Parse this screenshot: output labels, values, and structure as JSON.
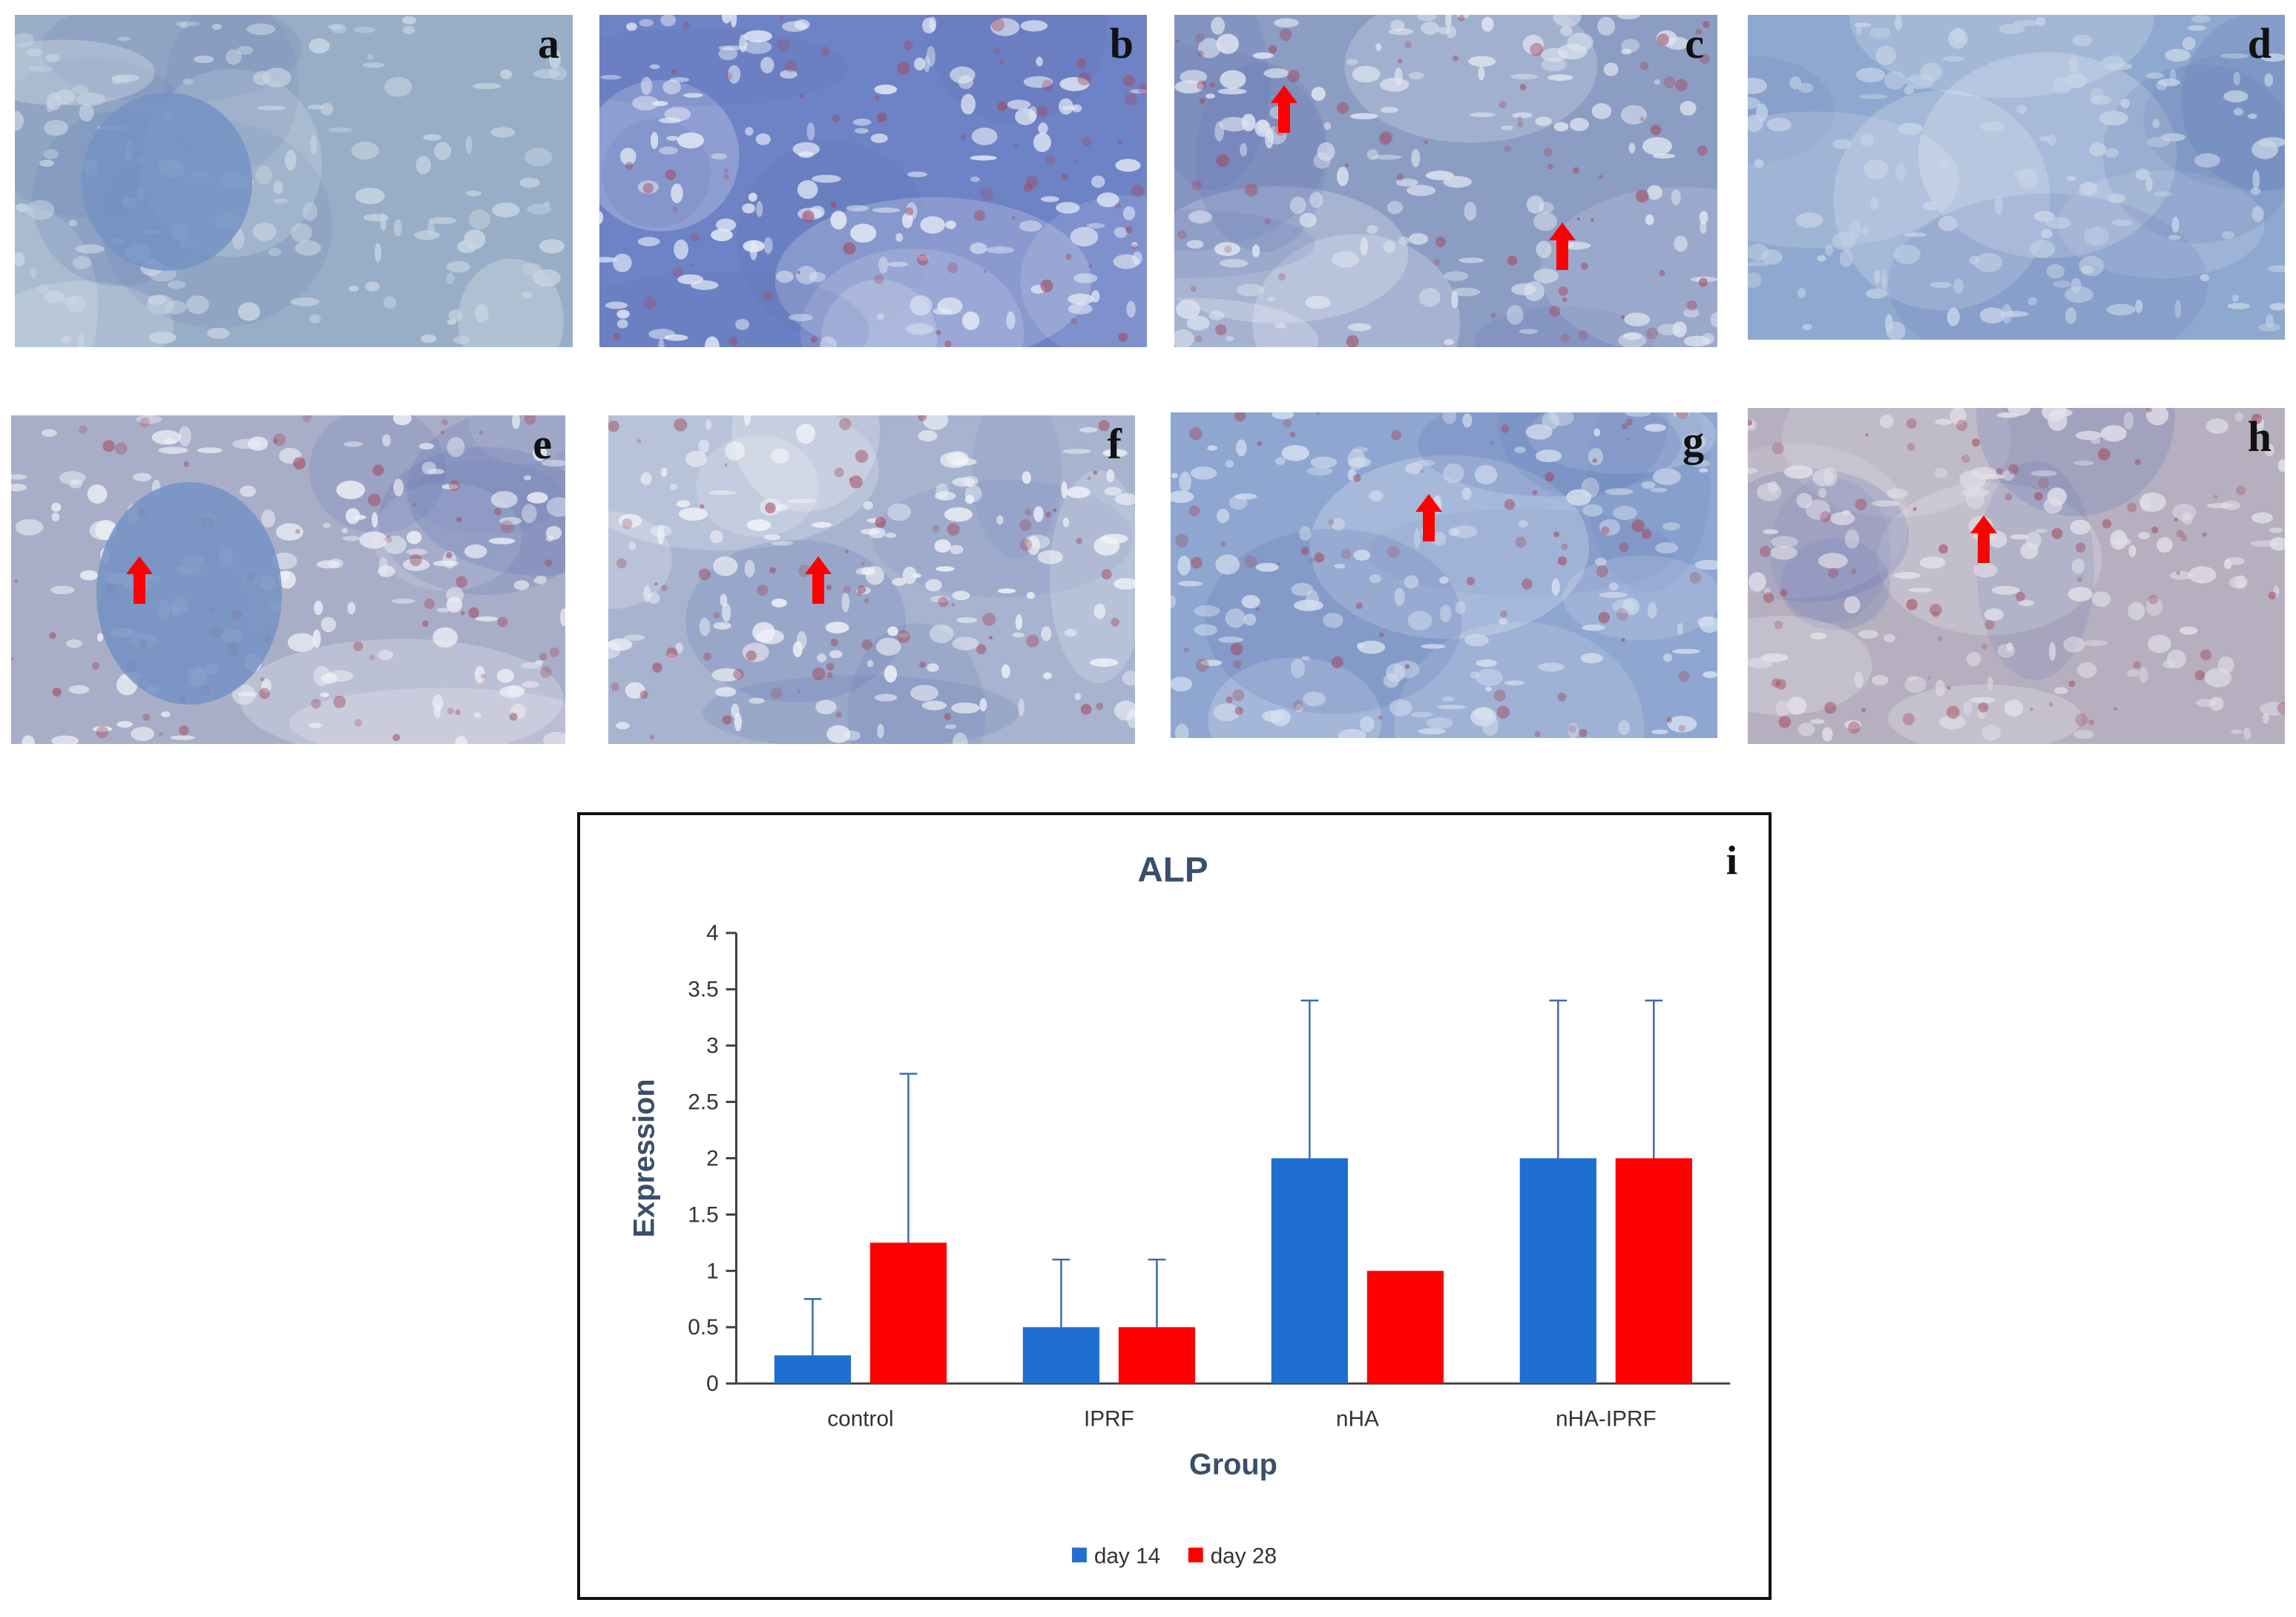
{
  "panels": [
    {
      "label": "a",
      "tint": "#98aec6",
      "dots": "#c9d6e3",
      "stain": false,
      "arrows": 0
    },
    {
      "label": "b",
      "tint": "#6e82c6",
      "dots": "#e6ecf6",
      "stain": true,
      "arrows": 0
    },
    {
      "label": "c",
      "tint": "#8c9dc4",
      "dots": "#dfe6f0",
      "stain": true,
      "arrows": 2
    },
    {
      "label": "d",
      "tint": "#8fa8cf",
      "dots": "#c7d4e6",
      "stain": false,
      "arrows": 0
    },
    {
      "label": "e",
      "tint": "#a9aec8",
      "dots": "#eef0f6",
      "stain": true,
      "arrows": 1
    },
    {
      "label": "f",
      "tint": "#a7b3cf",
      "dots": "#f2f4f8",
      "stain": true,
      "arrows": 1
    },
    {
      "label": "g",
      "tint": "#8ea6d0",
      "dots": "#d6e0ee",
      "stain": true,
      "arrows": 1
    },
    {
      "label": "h",
      "tint": "#b5afc0",
      "dots": "#e2e0e8",
      "stain": true,
      "arrows": 1
    }
  ],
  "colors": {
    "day14": "#1f6fd0",
    "day28": "#ff0000",
    "arrow": "#ff0000",
    "axis": "#404040",
    "title": "#3a4f6a"
  },
  "chart_data": {
    "type": "bar",
    "panel_label": "i",
    "title": "ALP",
    "xlabel": "Group",
    "ylabel": "Expression",
    "categories": [
      "control",
      "IPRF",
      "nHA",
      "nHA-IPRF"
    ],
    "ylim": [
      0,
      4
    ],
    "yticks": [
      "0",
      "0.5",
      "1",
      "1.5",
      "2",
      "2.5",
      "3",
      "3.5",
      "4"
    ],
    "grid": false,
    "legend": "bottom",
    "series": [
      {
        "name": "day 14",
        "values": [
          0.25,
          0.5,
          2.0,
          2.0
        ],
        "errors": [
          0.5,
          0.6,
          1.4,
          1.4
        ]
      },
      {
        "name": "day 28",
        "values": [
          1.25,
          0.5,
          1.0,
          2.0
        ],
        "errors": [
          1.5,
          0.6,
          0.0,
          1.4
        ]
      }
    ]
  }
}
